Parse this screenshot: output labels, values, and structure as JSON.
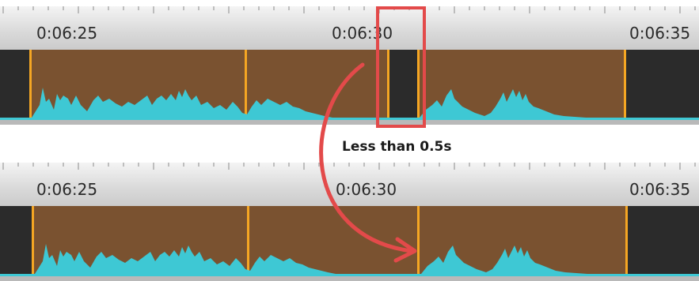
{
  "timeline_before": {
    "time_labels": [
      "0:06:25",
      "0:06:30",
      "0:06:35"
    ]
  },
  "timeline_after": {
    "time_labels": [
      "0:06:25",
      "0:06:30",
      "0:06:35"
    ]
  },
  "annotation": {
    "text": "Less than 0.5s"
  },
  "colors": {
    "clip": "#7a5230",
    "gap": "#2b2b2b",
    "clip_edge": "#f5a623",
    "waveform": "#3ec8d4",
    "annotation": "#e34a4a"
  }
}
